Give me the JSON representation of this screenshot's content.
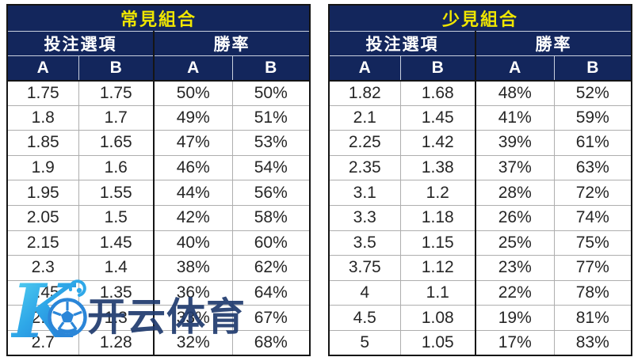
{
  "colors": {
    "header_navy": "#13265c",
    "title_yellow": "#efe600",
    "header_text_white": "#ffffff",
    "data_text": "#262626",
    "thin_border_gray": "#aeaeae",
    "thick_border_black": "#151515",
    "header_separator_light": "#c9d0de",
    "watermark_navy": "#1f3a6e",
    "logo_gradient_start": "#59d6f2",
    "logo_gradient_end": "#1f6fd0"
  },
  "tables": [
    {
      "title": "常見組合",
      "group_headers": [
        "投注選項",
        "勝率"
      ],
      "sub_headers": [
        "A",
        "B",
        "A",
        "B"
      ],
      "rows": [
        [
          "1.75",
          "1.75",
          "50%",
          "50%"
        ],
        [
          "1.8",
          "1.7",
          "49%",
          "51%"
        ],
        [
          "1.85",
          "1.65",
          "47%",
          "53%"
        ],
        [
          "1.9",
          "1.6",
          "46%",
          "54%"
        ],
        [
          "1.95",
          "1.55",
          "44%",
          "56%"
        ],
        [
          "2.05",
          "1.5",
          "42%",
          "58%"
        ],
        [
          "2.15",
          "1.45",
          "40%",
          "60%"
        ],
        [
          "2.3",
          "1.4",
          "38%",
          "62%"
        ],
        [
          "2.45",
          "1.35",
          "36%",
          "64%"
        ],
        [
          "2.6",
          "1.3",
          "33%",
          "67%"
        ],
        [
          "2.7",
          "1.28",
          "32%",
          "68%"
        ]
      ]
    },
    {
      "title": "少見組合",
      "group_headers": [
        "投注選項",
        "勝率"
      ],
      "sub_headers": [
        "A",
        "B",
        "A",
        "B"
      ],
      "rows": [
        [
          "1.82",
          "1.68",
          "48%",
          "52%"
        ],
        [
          "2.1",
          "1.45",
          "41%",
          "59%"
        ],
        [
          "2.25",
          "1.42",
          "39%",
          "61%"
        ],
        [
          "2.35",
          "1.38",
          "37%",
          "63%"
        ],
        [
          "3.1",
          "1.2",
          "28%",
          "72%"
        ],
        [
          "3.3",
          "1.18",
          "26%",
          "74%"
        ],
        [
          "3.5",
          "1.15",
          "25%",
          "75%"
        ],
        [
          "3.75",
          "1.12",
          "23%",
          "77%"
        ],
        [
          "4",
          "1.1",
          "22%",
          "78%"
        ],
        [
          "4.5",
          "1.08",
          "19%",
          "81%"
        ],
        [
          "5",
          "1.05",
          "17%",
          "83%"
        ]
      ]
    }
  ],
  "watermark": {
    "logo_letter": "K",
    "ball_icon": "soccer-ball",
    "text": "开云体育"
  }
}
